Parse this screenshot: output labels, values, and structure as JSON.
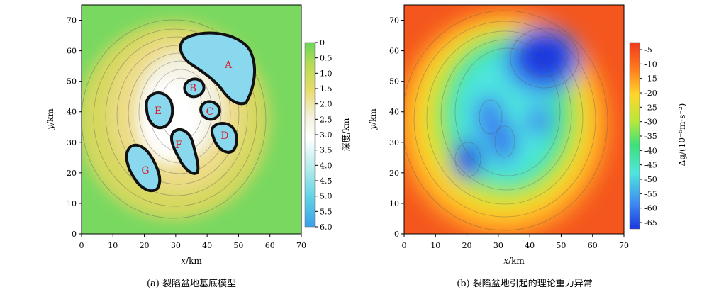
{
  "panels": [
    {
      "caption": "(a) 裂陷盆地基底模型",
      "xlabel_var": "x",
      "xlabel_unit": "/km",
      "ylabel_var": "y",
      "ylabel_unit": "/km",
      "colorbar_label": "深度/km",
      "colorbar_ticks": [
        "0",
        "0.5",
        "1.0",
        "1.5",
        "2.0",
        "2.5",
        "3.0",
        "3.5",
        "4.0",
        "4.5",
        "5.0",
        "5.5",
        "6.0"
      ],
      "sub_basins": [
        "A",
        "B",
        "C",
        "D",
        "E",
        "F",
        "G"
      ]
    },
    {
      "caption": "(b) 裂陷盆地引起的理论重力异常",
      "xlabel_var": "x",
      "xlabel_unit": "/km",
      "ylabel_var": "y",
      "ylabel_unit": "/km",
      "colorbar_label": "Δg/(10⁻⁵m·s⁻²)",
      "colorbar_ticks": [
        "-5",
        "-10",
        "-15",
        "-20",
        "-25",
        "-30",
        "-35",
        "-40",
        "-45",
        "-50",
        "-55",
        "-60",
        "-65"
      ]
    }
  ],
  "colors": {
    "depth_ramp": [
      "#6ad65a",
      "#b7dc55",
      "#e8dc6c",
      "#f3f1dc",
      "#ffffff",
      "#b6ecec",
      "#5fd3e6",
      "#3aa0ea"
    ],
    "gravity_ramp": [
      "#f03a1c",
      "#ff7a1e",
      "#ffd62a",
      "#b8e83a",
      "#3ee07a",
      "#4ee6de",
      "#3f8cf0",
      "#1a38e0"
    ]
  },
  "chart_data": [
    {
      "type": "heatmap",
      "title": "(a) 裂陷盆地基底模型",
      "xlabel": "x/km",
      "ylabel": "y/km",
      "xlim": [
        0,
        70
      ],
      "ylim": [
        0,
        75
      ],
      "x_ticks": [
        0,
        10,
        20,
        30,
        40,
        50,
        60,
        70
      ],
      "y_ticks": [
        0,
        10,
        20,
        30,
        40,
        50,
        60,
        70
      ],
      "colorbar": {
        "label": "深度/km",
        "range": [
          0,
          6.0
        ],
        "ticks": [
          0,
          0.5,
          1.0,
          1.5,
          2.0,
          2.5,
          3.0,
          3.5,
          4.0,
          4.5,
          5.0,
          5.5,
          6.0
        ]
      },
      "sub_basins": [
        {
          "label": "A",
          "x": 47,
          "y": 54
        },
        {
          "label": "B",
          "x": 35,
          "y": 48
        },
        {
          "label": "C",
          "x": 40,
          "y": 40
        },
        {
          "label": "D",
          "x": 45,
          "y": 32
        },
        {
          "label": "E",
          "x": 24,
          "y": 40
        },
        {
          "label": "F",
          "x": 31,
          "y": 29
        },
        {
          "label": "G",
          "x": 20,
          "y": 20
        }
      ]
    },
    {
      "type": "heatmap",
      "title": "(b) 裂陷盆地引起的理论重力异常",
      "xlabel": "x/km",
      "ylabel": "y/km",
      "xlim": [
        0,
        70
      ],
      "ylim": [
        0,
        75
      ],
      "x_ticks": [
        0,
        10,
        20,
        30,
        40,
        50,
        60,
        70
      ],
      "y_ticks": [
        0,
        10,
        20,
        30,
        40,
        50,
        60,
        70
      ],
      "colorbar": {
        "label": "Δg/(10⁻⁵m·s⁻²)",
        "range": [
          -65,
          -5
        ],
        "ticks": [
          -5,
          -10,
          -15,
          -20,
          -25,
          -30,
          -35,
          -40,
          -45,
          -50,
          -55,
          -60,
          -65
        ]
      }
    }
  ]
}
